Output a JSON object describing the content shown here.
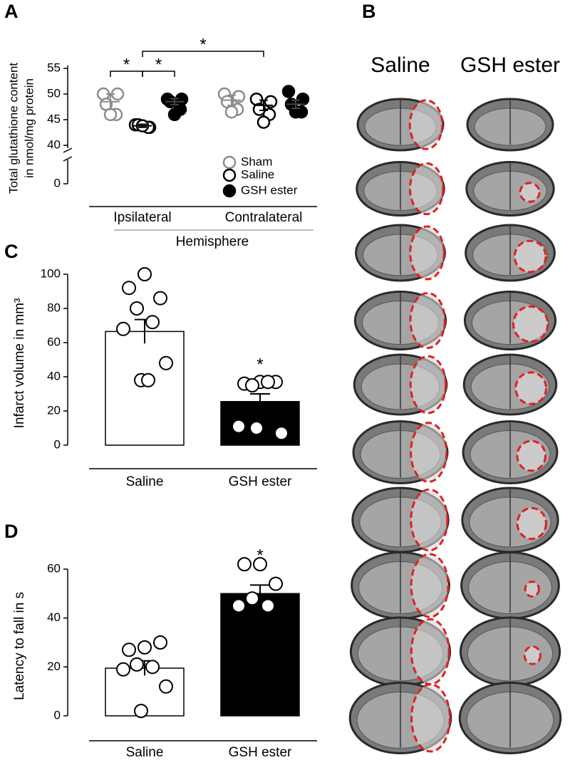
{
  "chart_data": [
    {
      "panel_label": "A",
      "type": "dot",
      "y_label": [
        "Total glutathione content",
        "in nmol/mg protein"
      ],
      "categories": [
        "Ipsilateral",
        "Contralateral"
      ],
      "x_label": "Hemisphere",
      "series": [
        {
          "name": "Sham",
          "color": "#8c8c8c",
          "filled": false,
          "points": [
            [
              50,
              50,
              48,
              46,
              46
            ],
            [
              50,
              49.5,
              48.5,
              47,
              46.5
            ]
          ],
          "means": [
            48.5,
            48.8
          ],
          "errors": [
            1.5,
            1
          ]
        },
        {
          "name": "Saline",
          "color": "#000000",
          "filled": false,
          "points": [
            [
              44,
              43.5,
              44,
              43.5,
              43.8
            ],
            [
              49,
              48.5,
              47,
              46,
              44.5
            ]
          ],
          "means": [
            43.8,
            47.8
          ],
          "errors": [
            0.3,
            1
          ]
        },
        {
          "name": "GSH ester",
          "color": "#000000",
          "filled": true,
          "points": [
            [
              49,
              49,
              48.5,
              47,
              46
            ],
            [
              50.5,
              49,
              48,
              46.5,
              46.5
            ]
          ],
          "means": [
            48.5,
            48
          ],
          "errors": [
            0.6,
            0.8
          ]
        }
      ],
      "ylim": [
        0,
        55
      ],
      "y_break": [
        0,
        40
      ],
      "yticks": [
        0,
        40,
        45,
        50,
        55
      ],
      "legend": "lower-right",
      "annotations": [
        "*",
        "*",
        "*"
      ]
    },
    {
      "panel_label": "C",
      "type": "bar",
      "y_label": "Infarct volume in mm³",
      "categories": [
        "Saline",
        "GSH ester"
      ],
      "values": [
        66.5,
        25.5
      ],
      "errors": [
        7,
        4.5
      ],
      "colors": [
        "#ffffff",
        "#000000"
      ],
      "points": [
        [
          100,
          92,
          86,
          80,
          72,
          68,
          48,
          38,
          38
        ],
        [
          37,
          36,
          37,
          35,
          37,
          11,
          7,
          10
        ]
      ],
      "ylim": [
        0,
        100
      ],
      "yticks": [
        0,
        20,
        40,
        60,
        80,
        100
      ],
      "annotations": [
        "*"
      ]
    },
    {
      "panel_label": "D",
      "type": "bar",
      "y_label": "Latency to fall in s",
      "categories": [
        "Saline",
        "GSH ester"
      ],
      "values": [
        19.5,
        50
      ],
      "errors": [
        3,
        3.5
      ],
      "colors": [
        "#ffffff",
        "#000000"
      ],
      "points": [
        [
          28,
          27,
          30,
          21,
          20,
          19,
          12,
          2
        ],
        [
          62,
          62,
          54,
          48,
          45,
          45
        ]
      ],
      "ylim": [
        0,
        60
      ],
      "yticks": [
        0,
        20,
        40,
        60
      ],
      "annotations": [
        "*"
      ]
    }
  ],
  "image_panel": {
    "panel_label": "B",
    "columns": [
      "Saline",
      "GSH ester"
    ]
  }
}
